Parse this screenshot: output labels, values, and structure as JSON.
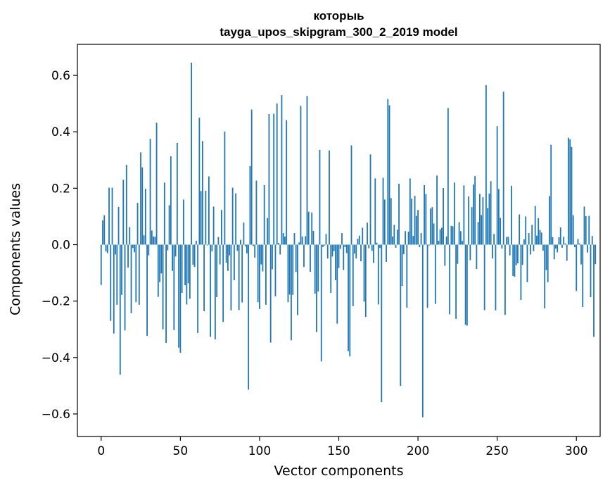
{
  "chart_data": {
    "type": "bar",
    "title_line1": "которыь",
    "title_line2": "tayga_upos_skipgram_300_2_2019 model",
    "xlabel": "Vector components",
    "ylabel": "Components values",
    "xlim": [
      -15,
      315
    ],
    "ylim": [
      -0.68,
      0.71
    ],
    "xticks": [
      0,
      50,
      100,
      150,
      200,
      250,
      300
    ],
    "xtick_labels": [
      "0",
      "50",
      "100",
      "150",
      "200",
      "250",
      "300"
    ],
    "yticks": [
      -0.6,
      -0.4,
      -0.2,
      0.0,
      0.2,
      0.4,
      0.6
    ],
    "ytick_labels": [
      "−0.6",
      "−0.4",
      "−0.2",
      "0.0",
      "0.2",
      "0.4",
      "0.6"
    ],
    "bar_color": "#1f77b4",
    "grid": false,
    "values": [
      -0.143,
      0.086,
      0.104,
      -0.024,
      -0.03,
      0.202,
      -0.27,
      0.202,
      -0.315,
      -0.035,
      -0.213,
      0.134,
      -0.461,
      -0.178,
      0.23,
      -0.304,
      0.283,
      -0.081,
      0.062,
      -0.243,
      -0.012,
      -0.027,
      -0.204,
      0.148,
      -0.213,
      0.327,
      0.274,
      0.033,
      0.198,
      -0.323,
      -0.038,
      0.375,
      0.05,
      0.029,
      0.028,
      0.432,
      -0.185,
      -0.133,
      -0.102,
      -0.3,
      0.22,
      -0.348,
      -0.02,
      0.14,
      0.313,
      -0.093,
      -0.303,
      -0.042,
      0.361,
      -0.365,
      -0.383,
      -0.171,
      0.16,
      -0.144,
      -0.212,
      -0.137,
      -0.192,
      0.645,
      -0.071,
      -0.079,
      0.014,
      -0.313,
      0.45,
      0.19,
      0.367,
      -0.236,
      0.191,
      -0.003,
      0.242,
      -0.327,
      -0.024,
      0.135,
      -0.336,
      -0.186,
      0.027,
      -0.07,
      0.123,
      -0.274,
      0.401,
      -0.064,
      -0.093,
      -0.038,
      -0.233,
      0.202,
      -0.126,
      0.182,
      -0.022,
      -0.232,
      0.017,
      -0.205,
      0.078,
      -0.006,
      -0.031,
      -0.514,
      0.278,
      0.479,
      -0.005,
      -0.046,
      0.227,
      -0.204,
      -0.228,
      -0.07,
      -0.095,
      0.211,
      -0.213,
      0.094,
      0.463,
      -0.347,
      -0.087,
      0.464,
      -0.183,
      0.5,
      0.006,
      -0.035,
      0.53,
      0.041,
      0.029,
      0.441,
      -0.204,
      -0.177,
      -0.339,
      -0.178,
      0.041,
      -0.097,
      -0.25,
      0.008,
      0.492,
      0.029,
      -0.079,
      0.03,
      0.527,
      0.117,
      -0.096,
      0.114,
      0.049,
      -0.174,
      -0.31,
      -0.166,
      0.336,
      -0.414,
      -0.008,
      -0.003,
      0.038,
      -0.049,
      0.334,
      -0.171,
      -0.042,
      -0.023,
      -0.126,
      -0.28,
      -0.083,
      -0.015,
      0.041,
      -0.09,
      -0.009,
      -0.03,
      -0.378,
      -0.396,
      0.352,
      -0.218,
      -0.032,
      -0.049,
      0.021,
      0.032,
      -0.059,
      0.06,
      -0.202,
      -0.256,
      0.078,
      -0.013,
      0.32,
      -0.022,
      -0.065,
      0.235,
      0.007,
      -0.212,
      -0.012,
      -0.558,
      0.237,
      0.16,
      -0.061,
      0.516,
      0.494,
      0.165,
      0.029,
      0.07,
      -0.011,
      0.053,
      0.216,
      -0.501,
      -0.146,
      -0.034,
      0.048,
      -0.223,
      0.046,
      0.235,
      0.163,
      0.031,
      0.173,
      0.102,
      0.123,
      -0.009,
      0.041,
      -0.612,
      0.211,
      0.179,
      -0.224,
      -0.003,
      0.128,
      0.133,
      0.075,
      -0.21,
      0.245,
      0.014,
      0.054,
      0.06,
      0.201,
      -0.075,
      0.029,
      0.484,
      -0.247,
      0.067,
      0.065,
      0.22,
      -0.263,
      -0.068,
      0.08,
      0.048,
      0.013,
      0.21,
      -0.284,
      -0.287,
      0.171,
      -0.055,
      0.133,
      0.213,
      0.243,
      -0.086,
      0.08,
      0.18,
      0.105,
      0.168,
      -0.232,
      0.565,
      0.13,
      0.181,
      0.225,
      -0.049,
      0.038,
      -0.233,
      0.42,
      0.197,
      0.095,
      -0.014,
      0.542,
      -0.249,
      0.027,
      0.028,
      -0.038,
      0.209,
      -0.111,
      -0.114,
      -0.073,
      -0.066,
      0.107,
      -0.196,
      -0.072,
      0.019,
      0.1,
      -0.133,
      0.041,
      -0.035,
      0.07,
      -0.023,
      0.137,
      0.032,
      0.094,
      0.052,
      0.043,
      -0.021,
      -0.226,
      -0.09,
      -0.133,
      0.172,
      0.354,
      0.027,
      -0.052,
      -0.014,
      -0.027,
      0.026,
      0.061,
      -0.011,
      0.028,
      0.004,
      -0.057,
      0.379,
      0.373,
      0.346,
      0.104,
      -0.009,
      -0.164,
      0.02,
      0.004,
      -0.07,
      -0.221,
      0.135,
      0.101,
      -0.028,
      0.102,
      -0.186,
      0.031,
      -0.327,
      -0.069
    ]
  }
}
